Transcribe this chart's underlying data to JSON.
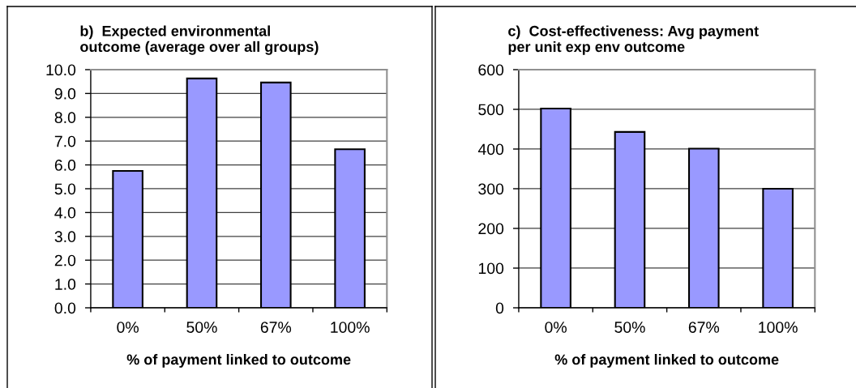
{
  "chart_data": [
    {
      "type": "bar",
      "title": "b)  Expected environmental\noutcome (average over all groups)",
      "xlabel": "% of payment linked to outcome",
      "categories": [
        "0%",
        "50%",
        "67%",
        "100%"
      ],
      "values": [
        5.75,
        9.63,
        9.46,
        6.66
      ],
      "color": "#9999ff",
      "ylim": [
        0,
        10
      ],
      "yticks": [
        {
          "value": 0,
          "label": "0.0"
        },
        {
          "value": 1,
          "label": "1.0"
        },
        {
          "value": 2,
          "label": "2.0"
        },
        {
          "value": 3,
          "label": "3.0"
        },
        {
          "value": 4,
          "label": "4.0"
        },
        {
          "value": 5,
          "label": "5.0"
        },
        {
          "value": 6,
          "label": "6.0"
        },
        {
          "value": 7,
          "label": "7.0"
        },
        {
          "value": 8,
          "label": "8.0"
        },
        {
          "value": 9,
          "label": "9.0"
        },
        {
          "value": 10,
          "label": "10.0"
        }
      ],
      "grid": "y"
    },
    {
      "type": "bar",
      "title": "c)  Cost-effectiveness: Avg payment\nper unit exp env outcome",
      "xlabel": "% of payment linked to outcome",
      "categories": [
        "0%",
        "50%",
        "67%",
        "100%"
      ],
      "values": [
        502,
        443,
        401,
        300
      ],
      "color": "#9999ff",
      "ylim": [
        0,
        600
      ],
      "yticks": [
        0,
        100,
        200,
        300,
        400,
        500,
        600
      ],
      "grid": "y"
    }
  ]
}
